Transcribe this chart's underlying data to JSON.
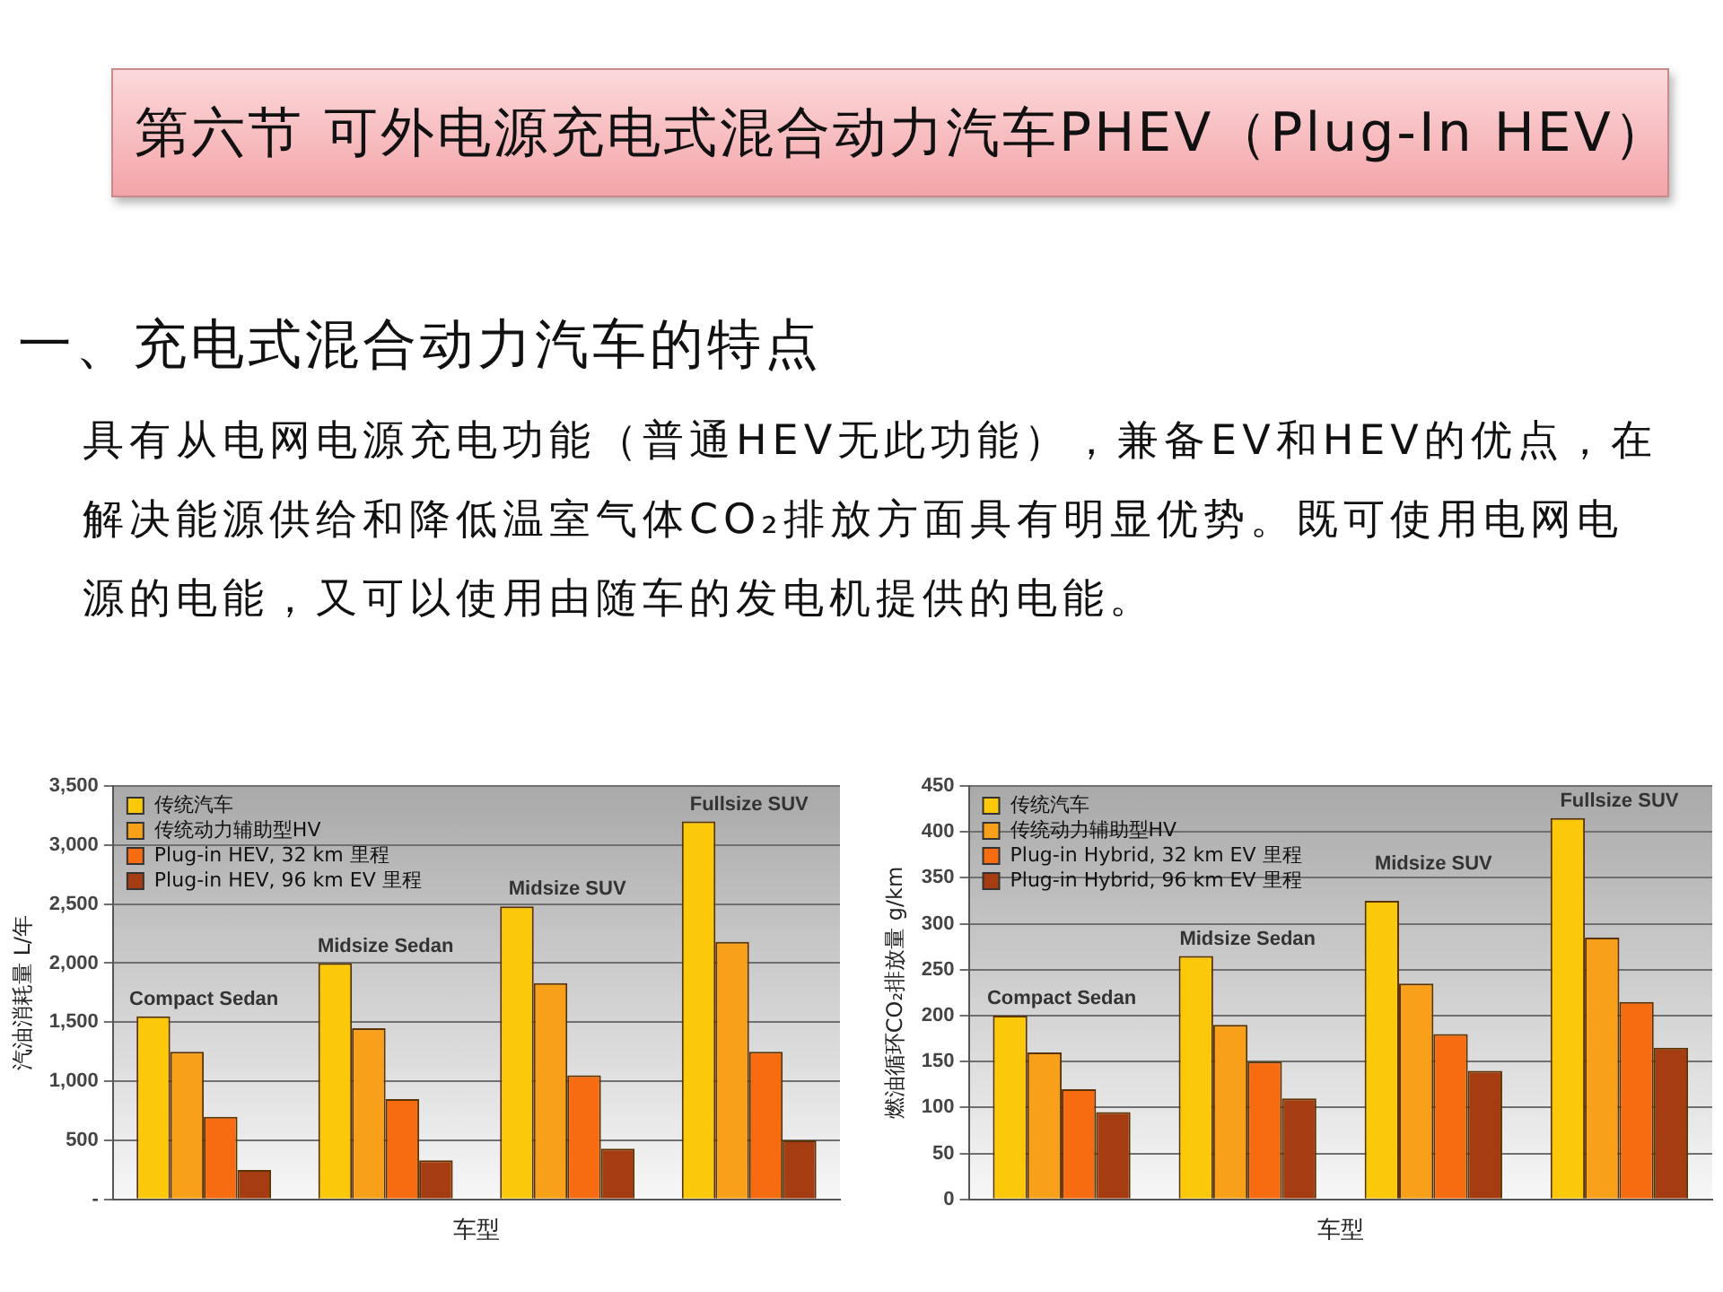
{
  "chart_data": [
    {
      "type": "other",
      "title": "第六节 可外电源充电式混合动力汽车PHEV（Plug-In HEV）",
      "subtitle": "一、充电式混合动力汽车的特点",
      "annotations": [
        "具有从电网电源充电功能（普通HEV无此功能），兼备EV和HEV的优点，在解决能源供给和降低温室气体CO₂排放方面具有明显优势。既可使用电网电源的电能，又可以使用由随车的发电机提供的电能。"
      ]
    },
    {
      "type": "bar",
      "xlabel": "车型",
      "ylabel": "汽油消耗量 L/年",
      "categories": [
        "Compact Sedan",
        "Midsize Sedan",
        "Midsize SUV",
        "Fullsize SUV"
      ],
      "series": [
        {
          "name": "传统汽车",
          "color": "#fcc80a",
          "values": [
            1550,
            2000,
            2480,
            3200
          ]
        },
        {
          "name": "传统动力辅助型HV",
          "color": "#f9a01a",
          "values": [
            1250,
            1450,
            1830,
            2180
          ]
        },
        {
          "name": "Plug-in HEV, 32 km 里程",
          "color": "#f76c10",
          "values": [
            700,
            850,
            1050,
            1250
          ]
        },
        {
          "name": "Plug-in HEV, 96 km EV 里程",
          "color": "#a63c12",
          "values": [
            250,
            330,
            430,
            500
          ]
        }
      ],
      "ylim": [
        0,
        3500
      ],
      "yticks": [
        {
          "value": 0,
          "label": "-"
        },
        500,
        {
          "value": 1000,
          "label": "1,000"
        },
        {
          "value": 1500,
          "label": "1,500"
        },
        {
          "value": 2000,
          "label": "2,000"
        },
        {
          "value": 2500,
          "label": "2,500"
        },
        {
          "value": 3000,
          "label": "3,000"
        },
        {
          "value": 3500,
          "label": "3,500"
        }
      ],
      "grid": "y",
      "legend": "top left"
    },
    {
      "type": "bar",
      "xlabel": "车型",
      "ylabel": "燃油循环CO₂排放量 g/km",
      "categories": [
        "Compact Sedan",
        "Midsize Sedan",
        "Midsize SUV",
        "Fullsize SUV"
      ],
      "series": [
        {
          "name": "传统汽车",
          "color": "#fcc80a",
          "values": [
            200,
            265,
            325,
            415
          ]
        },
        {
          "name": "传统动力辅助型HV",
          "color": "#f9a01a",
          "values": [
            160,
            190,
            235,
            285
          ]
        },
        {
          "name": "Plug-in Hybrid, 32 km EV 里程",
          "color": "#f76c10",
          "values": [
            120,
            150,
            180,
            215
          ]
        },
        {
          "name": "Plug-in Hybrid, 96 km EV 里程",
          "color": "#a63c12",
          "values": [
            95,
            110,
            140,
            165
          ]
        }
      ],
      "ylim": [
        0,
        450
      ],
      "yticks": [
        0,
        50,
        100,
        150,
        200,
        250,
        300,
        350,
        400,
        450
      ],
      "grid": "y",
      "legend": "top left"
    }
  ]
}
